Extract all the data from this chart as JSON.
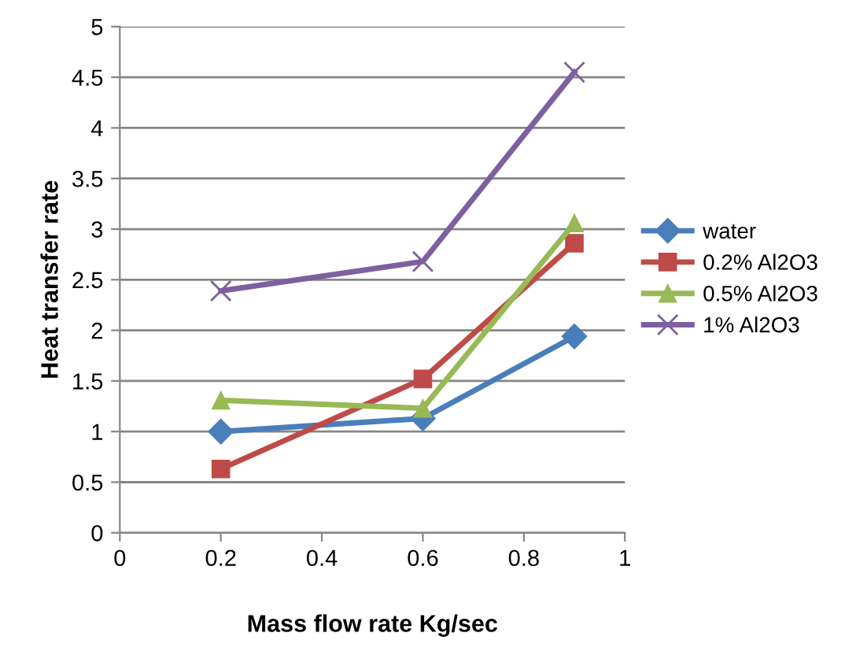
{
  "chart_data": {
    "type": "line",
    "xlabel": "Mass flow rate Kg/sec",
    "ylabel": "Heat transfer rate",
    "x": [
      0.2,
      0.6,
      0.9
    ],
    "series": [
      {
        "name": "water",
        "color": "#4a7ebb",
        "marker": "diamond",
        "values": [
          1.0,
          1.13,
          1.94
        ]
      },
      {
        "name": "0.2% Al2O3",
        "color": "#be4b48",
        "marker": "square",
        "values": [
          0.63,
          1.52,
          2.86
        ]
      },
      {
        "name": "0.5% Al2O3",
        "color": "#98b954",
        "marker": "triangle",
        "values": [
          1.31,
          1.23,
          3.06
        ]
      },
      {
        "name": "1% Al2O3",
        "color": "#7d60a0",
        "marker": "cross",
        "values": [
          2.39,
          2.68,
          4.55
        ]
      }
    ],
    "xlim": [
      0,
      1
    ],
    "xticks": [
      0,
      0.2,
      0.4,
      0.6,
      0.8,
      1
    ],
    "ylim": [
      0,
      5
    ],
    "yticks": [
      0,
      0.5,
      1,
      1.5,
      2,
      2.5,
      3,
      3.5,
      4,
      4.5,
      5
    ],
    "grid": "y",
    "legend": "right",
    "line_style": "solid"
  }
}
